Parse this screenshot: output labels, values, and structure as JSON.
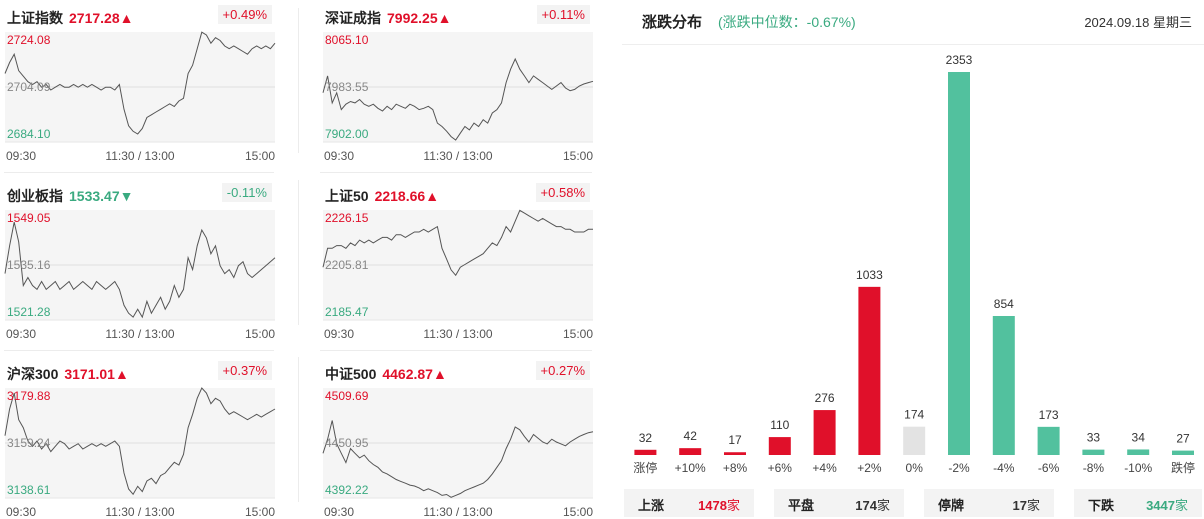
{
  "time_labels": [
    "09:30",
    "11:30 / 13:00",
    "15:00"
  ],
  "indices": [
    {
      "name": "上证指数",
      "price": "2717.28",
      "arrow": "▲",
      "trend": "up",
      "change": "+0.49%",
      "high": "2724.08",
      "mid": "2704.09",
      "low": "2684.10",
      "series": [
        2709,
        2713,
        2716,
        2710,
        2708,
        2706,
        2705,
        2706,
        2704,
        2705,
        2703,
        2704,
        2705,
        2704,
        2704,
        2705,
        2704,
        2705,
        2704,
        2705,
        2704,
        2703,
        2704,
        2704,
        2703,
        2705,
        2696,
        2690,
        2688,
        2687,
        2689,
        2693,
        2694,
        2695,
        2696,
        2697,
        2698,
        2697,
        2699,
        2700,
        2709,
        2712,
        2718,
        2724,
        2723,
        2720,
        2722,
        2721,
        2719,
        2718,
        2719,
        2718,
        2717,
        2716,
        2718,
        2719,
        2718,
        2719,
        2718,
        2720
      ]
    },
    {
      "name": "深证成指",
      "price": "7992.25",
      "arrow": "▲",
      "trend": "up",
      "change": "+0.11%",
      "high": "8065.10",
      "mid": "7983.55",
      "low": "7902.00",
      "series": [
        7975,
        8000,
        7960,
        7975,
        7950,
        7958,
        7962,
        7960,
        7965,
        7958,
        7955,
        7958,
        7952,
        7948,
        7955,
        7950,
        7958,
        7955,
        7952,
        7958,
        7955,
        7950,
        7952,
        7955,
        7950,
        7930,
        7925,
        7918,
        7910,
        7905,
        7915,
        7925,
        7920,
        7930,
        7925,
        7935,
        7930,
        7945,
        7950,
        7960,
        7990,
        8010,
        8025,
        8010,
        8000,
        7990,
        8000,
        7995,
        7990,
        7985,
        7980,
        7985,
        7990,
        7982,
        7978,
        7980,
        7985,
        7988,
        7990,
        7992
      ]
    },
    {
      "name": "创业板指",
      "price": "1533.47",
      "arrow": "▼",
      "trend": "down",
      "change": "-0.11%",
      "high": "1549.05",
      "mid": "1535.16",
      "low": "1521.28",
      "series": [
        1533,
        1540,
        1546,
        1541,
        1530,
        1532,
        1530,
        1529,
        1531,
        1529,
        1530,
        1531,
        1529,
        1530,
        1531,
        1529,
        1530,
        1531,
        1530,
        1529,
        1531,
        1530,
        1529,
        1530,
        1531,
        1529,
        1525,
        1523,
        1522,
        1524,
        1522,
        1526,
        1523,
        1525,
        1527,
        1524,
        1526,
        1530,
        1527,
        1529,
        1537,
        1534,
        1540,
        1544,
        1542,
        1538,
        1540,
        1535,
        1533,
        1534,
        1532,
        1535,
        1536,
        1533,
        1532,
        1533,
        1534,
        1535,
        1536,
        1537
      ]
    },
    {
      "name": "上证50",
      "price": "2218.66",
      "arrow": "▲",
      "trend": "up",
      "change": "+0.58%",
      "high": "2226.15",
      "mid": "2205.81",
      "low": "2185.47",
      "series": [
        2205,
        2212,
        2212,
        2213,
        2213,
        2212,
        2214,
        2213,
        2215,
        2214,
        2215,
        2214,
        2215,
        2216,
        2216,
        2215,
        2217,
        2217,
        2216,
        2217,
        2218,
        2218,
        2219,
        2218,
        2219,
        2220,
        2212,
        2208,
        2204,
        2202,
        2205,
        2206,
        2207,
        2208,
        2209,
        2210,
        2212,
        2214,
        2213,
        2216,
        2220,
        2218,
        2222,
        2226,
        2225,
        2224,
        2223,
        2222,
        2223,
        2222,
        2221,
        2220,
        2220,
        2219,
        2219,
        2218,
        2218,
        2218,
        2219,
        2219
      ]
    },
    {
      "name": "沪深300",
      "price": "3171.01",
      "arrow": "▲",
      "trend": "up",
      "change": "+0.37%",
      "high": "3179.88",
      "mid": "3159.24",
      "low": "3138.61",
      "series": [
        3162,
        3172,
        3178,
        3168,
        3165,
        3160,
        3158,
        3160,
        3157,
        3159,
        3156,
        3158,
        3160,
        3159,
        3157,
        3158,
        3159,
        3157,
        3158,
        3159,
        3158,
        3159,
        3158,
        3159,
        3160,
        3158,
        3148,
        3142,
        3140,
        3143,
        3141,
        3145,
        3146,
        3144,
        3147,
        3148,
        3150,
        3152,
        3151,
        3155,
        3165,
        3170,
        3176,
        3180,
        3178,
        3174,
        3176,
        3175,
        3172,
        3170,
        3171,
        3170,
        3169,
        3168,
        3169,
        3170,
        3169,
        3170,
        3171,
        3172
      ]
    },
    {
      "name": "中证500",
      "price": "4462.87",
      "arrow": "▲",
      "trend": "up",
      "change": "+0.27%",
      "high": "4509.69",
      "mid": "4450.95",
      "low": "4392.22",
      "series": [
        4440,
        4455,
        4475,
        4450,
        4440,
        4430,
        4445,
        4440,
        4435,
        4438,
        4432,
        4428,
        4425,
        4420,
        4418,
        4415,
        4412,
        4410,
        4408,
        4406,
        4405,
        4403,
        4400,
        4402,
        4400,
        4398,
        4395,
        4396,
        4393,
        4395,
        4397,
        4400,
        4402,
        4404,
        4406,
        4408,
        4412,
        4418,
        4425,
        4432,
        4445,
        4455,
        4468,
        4465,
        4458,
        4452,
        4460,
        4456,
        4452,
        4450,
        4455,
        4452,
        4450,
        4448,
        4452,
        4455,
        4458,
        4460,
        4462,
        4463
      ]
    }
  ],
  "distribution": {
    "title": "涨跌分布",
    "median_label": "(涨跌中位数：-0.67%)",
    "date": "2024.09.18 星期三",
    "summary": [
      {
        "label": "上涨",
        "value": "1478",
        "unit": "家",
        "color": "#e0102a"
      },
      {
        "label": "平盘",
        "value": "174",
        "unit": "家",
        "color": "#333333"
      },
      {
        "label": "停牌",
        "value": "17",
        "unit": "家",
        "color": "#333333"
      },
      {
        "label": "下跌",
        "value": "3447",
        "unit": "家",
        "color": "#3aaa80"
      }
    ]
  },
  "chart_data": {
    "type": "bar",
    "categories": [
      "涨停",
      "+10%",
      "+8%",
      "+6%",
      "+4%",
      "+2%",
      "0%",
      "-2%",
      "-4%",
      "-6%",
      "-8%",
      "-10%",
      "跌停"
    ],
    "values": [
      32,
      42,
      17,
      110,
      276,
      1033,
      174,
      2353,
      854,
      173,
      33,
      34,
      27
    ],
    "colors": [
      "#e0102a",
      "#e0102a",
      "#e0102a",
      "#e0102a",
      "#e0102a",
      "#e0102a",
      "#e3e3e3",
      "#52c19e",
      "#52c19e",
      "#52c19e",
      "#52c19e",
      "#52c19e",
      "#52c19e"
    ],
    "title": "涨跌分布",
    "xlabel": "",
    "ylabel": "",
    "grid": false,
    "legend": "none"
  }
}
